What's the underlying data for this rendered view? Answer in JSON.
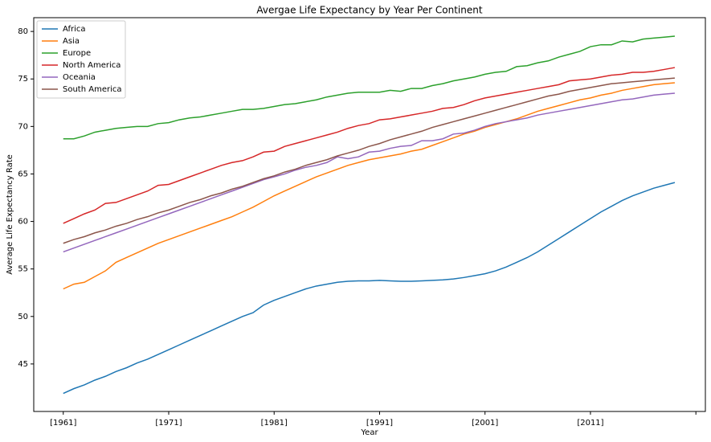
{
  "chart_data": {
    "type": "line",
    "title": "Avergae Life Expectancy by Year Per Continent",
    "xlabel": "Year",
    "ylabel": "Average Life Expectancy Rate",
    "legend": "upper left",
    "xlim": [
      1958.2,
      2021.9
    ],
    "ylim": [
      40,
      81.45
    ],
    "xticks": [
      {
        "value": 1961,
        "label": "[1961]"
      },
      {
        "value": 1971,
        "label": "[1971]"
      },
      {
        "value": 1981,
        "label": "[1981]"
      },
      {
        "value": 1991,
        "label": "[1991]"
      },
      {
        "value": 2001,
        "label": "[2001]"
      },
      {
        "value": 2011,
        "label": "[2011]"
      },
      {
        "value": 2021,
        "label": null
      }
    ],
    "yticks": [
      45,
      50,
      55,
      60,
      65,
      70,
      75,
      80
    ],
    "x": [
      1961,
      1962,
      1963,
      1964,
      1965,
      1966,
      1967,
      1968,
      1969,
      1970,
      1971,
      1972,
      1973,
      1974,
      1975,
      1976,
      1977,
      1978,
      1979,
      1980,
      1981,
      1982,
      1983,
      1984,
      1985,
      1986,
      1987,
      1988,
      1989,
      1990,
      1991,
      1992,
      1993,
      1994,
      1995,
      1996,
      1997,
      1998,
      1999,
      2000,
      2001,
      2002,
      2003,
      2004,
      2005,
      2006,
      2007,
      2008,
      2009,
      2010,
      2011,
      2012,
      2013,
      2014,
      2015,
      2016,
      2017,
      2018,
      2019
    ],
    "series": [
      {
        "name": "Africa",
        "color": "#1f77b4",
        "values": [
          41.9,
          42.4,
          42.8,
          43.3,
          43.7,
          44.2,
          44.6,
          45.1,
          45.5,
          46.0,
          46.5,
          47.0,
          47.5,
          48.0,
          48.5,
          49.0,
          49.5,
          50.0,
          50.4,
          51.2,
          51.7,
          52.1,
          52.5,
          52.9,
          53.2,
          53.4,
          53.6,
          53.7,
          53.75,
          53.75,
          53.8,
          53.75,
          53.7,
          53.7,
          53.75,
          53.8,
          53.85,
          53.95,
          54.1,
          54.3,
          54.5,
          54.8,
          55.2,
          55.7,
          56.2,
          56.8,
          57.5,
          58.2,
          58.9,
          59.6,
          60.3,
          61.0,
          61.6,
          62.2,
          62.7,
          63.1,
          63.5,
          63.8,
          64.1
        ]
      },
      {
        "name": "Asia",
        "color": "#ff7f0e",
        "values": [
          52.9,
          53.4,
          53.6,
          54.2,
          54.8,
          55.7,
          56.2,
          56.7,
          57.2,
          57.7,
          58.1,
          58.5,
          58.9,
          59.3,
          59.7,
          60.1,
          60.5,
          61.0,
          61.5,
          62.1,
          62.7,
          63.2,
          63.7,
          64.2,
          64.7,
          65.1,
          65.5,
          65.9,
          66.2,
          66.5,
          66.7,
          66.9,
          67.1,
          67.4,
          67.6,
          68.0,
          68.4,
          68.8,
          69.2,
          69.5,
          69.9,
          70.2,
          70.5,
          70.8,
          71.2,
          71.6,
          71.9,
          72.2,
          72.5,
          72.8,
          73.0,
          73.3,
          73.5,
          73.8,
          74.0,
          74.2,
          74.4,
          74.5,
          74.6
        ]
      },
      {
        "name": "Europe",
        "color": "#2ca02c",
        "values": [
          68.7,
          68.7,
          69.0,
          69.4,
          69.6,
          69.8,
          69.9,
          70.0,
          70.0,
          70.3,
          70.4,
          70.7,
          70.9,
          71.0,
          71.2,
          71.4,
          71.6,
          71.8,
          71.8,
          71.9,
          72.1,
          72.3,
          72.4,
          72.6,
          72.8,
          73.1,
          73.3,
          73.5,
          73.6,
          73.6,
          73.6,
          73.8,
          73.7,
          74.0,
          74.0,
          74.3,
          74.5,
          74.8,
          75.0,
          75.2,
          75.5,
          75.7,
          75.8,
          76.3,
          76.4,
          76.7,
          76.9,
          77.3,
          77.6,
          77.9,
          78.4,
          78.6,
          78.6,
          79.0,
          78.9,
          79.2,
          79.3,
          79.4,
          79.5
        ]
      },
      {
        "name": "North America",
        "color": "#d62728",
        "values": [
          59.8,
          60.3,
          60.8,
          61.2,
          61.9,
          62.0,
          62.4,
          62.8,
          63.2,
          63.8,
          63.9,
          64.3,
          64.7,
          65.1,
          65.5,
          65.9,
          66.2,
          66.4,
          66.8,
          67.3,
          67.4,
          67.9,
          68.2,
          68.5,
          68.8,
          69.1,
          69.4,
          69.8,
          70.1,
          70.3,
          70.7,
          70.8,
          71.0,
          71.2,
          71.4,
          71.6,
          71.9,
          72.0,
          72.3,
          72.7,
          73.0,
          73.2,
          73.4,
          73.6,
          73.8,
          74.0,
          74.2,
          74.4,
          74.8,
          74.9,
          75.0,
          75.2,
          75.4,
          75.5,
          75.7,
          75.7,
          75.8,
          76.0,
          76.2
        ]
      },
      {
        "name": "Oceania",
        "color": "#9467bd",
        "values": [
          56.8,
          57.2,
          57.6,
          58.0,
          58.4,
          58.8,
          59.2,
          59.6,
          60.0,
          60.4,
          60.8,
          61.2,
          61.6,
          62.0,
          62.4,
          62.8,
          63.2,
          63.6,
          64.0,
          64.4,
          64.7,
          65.0,
          65.4,
          65.7,
          65.9,
          66.2,
          66.8,
          66.6,
          66.8,
          67.3,
          67.4,
          67.7,
          67.9,
          68.0,
          68.5,
          68.5,
          68.7,
          69.2,
          69.3,
          69.6,
          70.0,
          70.3,
          70.5,
          70.7,
          70.9,
          71.2,
          71.4,
          71.6,
          71.8,
          72.0,
          72.2,
          72.4,
          72.6,
          72.8,
          72.9,
          73.1,
          73.3,
          73.4,
          73.5
        ]
      },
      {
        "name": "South America",
        "color": "#8c564b",
        "values": [
          57.7,
          58.1,
          58.4,
          58.8,
          59.1,
          59.5,
          59.8,
          60.2,
          60.5,
          60.9,
          61.2,
          61.6,
          62.0,
          62.3,
          62.7,
          63.0,
          63.4,
          63.7,
          64.1,
          64.5,
          64.8,
          65.2,
          65.5,
          65.9,
          66.2,
          66.5,
          66.9,
          67.2,
          67.5,
          67.9,
          68.2,
          68.6,
          68.9,
          69.2,
          69.5,
          69.9,
          70.2,
          70.5,
          70.8,
          71.1,
          71.4,
          71.7,
          72.0,
          72.3,
          72.6,
          72.9,
          73.2,
          73.4,
          73.7,
          73.9,
          74.1,
          74.3,
          74.5,
          74.6,
          74.7,
          74.8,
          74.9,
          75.0,
          75.1
        ]
      }
    ]
  }
}
